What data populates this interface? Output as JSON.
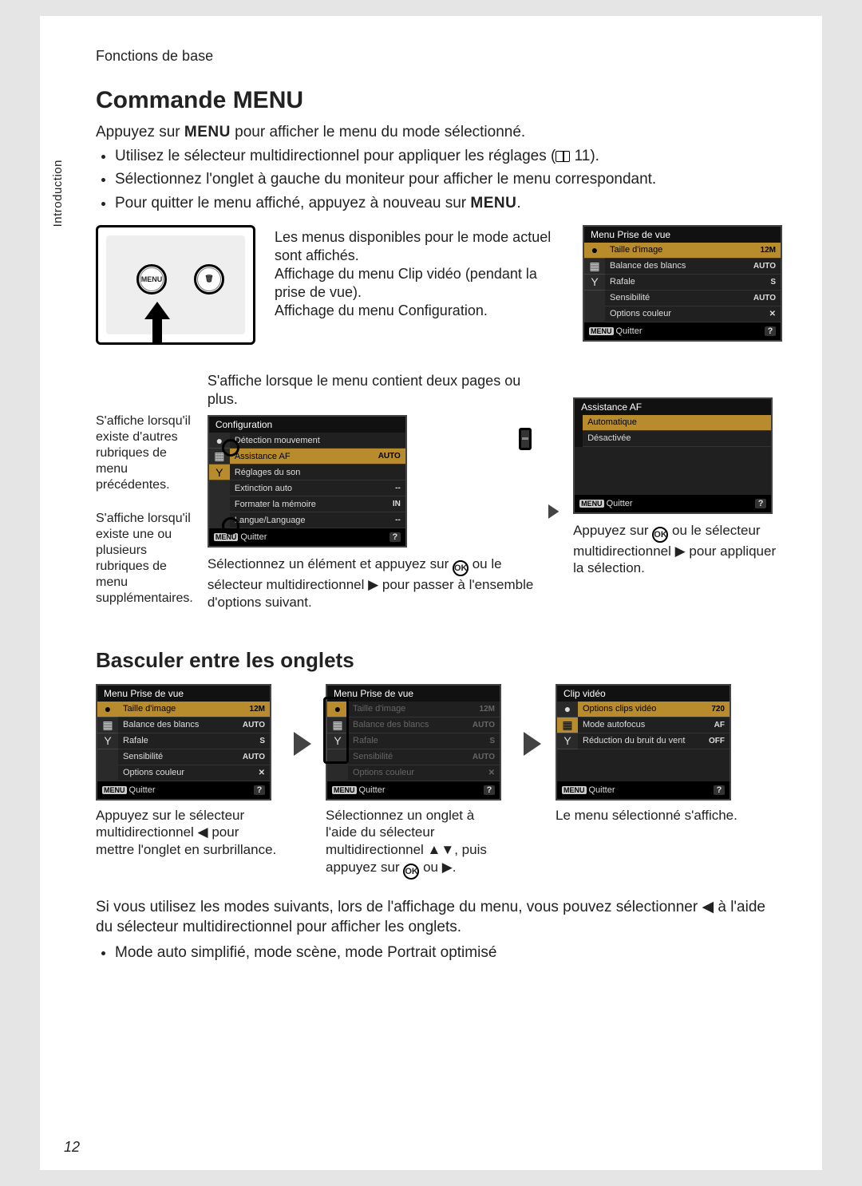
{
  "tab_label": "Introduction",
  "breadcrumb": "Fonctions de base",
  "h1": "Commande MENU",
  "intro_line_pre": "Appuyez sur ",
  "intro_line_bold": "MENU",
  "intro_line_post": " pour afficher le menu du mode sélectionné.",
  "bullets": [
    "Utilisez le sélecteur multidirectionnel pour appliquer les réglages (📖 11).",
    "Sélectionnez l'onglet à gauche du moniteur pour afficher le menu correspondant.",
    "Pour quitter le menu affiché, appuyez à nouveau sur MENU."
  ],
  "sec1_text": "Les menus disponibles pour le mode actuel sont affichés.\nAffichage du menu Clip vidéo (pendant la prise de vue).\nAffichage du menu Configuration.",
  "lcd1": {
    "title": "Menu Prise de vue",
    "rows": [
      {
        "label": "Taille d'image",
        "val": "12M",
        "sel": true
      },
      {
        "label": "Balance des blancs",
        "val": "AUTO"
      },
      {
        "label": "Rafale",
        "val": "S"
      },
      {
        "label": "Sensibilité",
        "val": "AUTO"
      },
      {
        "label": "Options couleur",
        "val": "✕"
      }
    ],
    "foot": "Quitter"
  },
  "sec2": {
    "toptext": "S'affiche lorsque le menu contient deux pages ou plus.",
    "left_a": "S'affiche lorsqu'il existe d'autres rubriques de menu précédentes.",
    "left_b": "S'affiche lorsqu'il existe une ou plusieurs rubriques de menu supplémentaires.",
    "cap_b_pre": "Sélectionnez un élément et appuyez sur ",
    "cap_b_post": " ou le sélecteur multidirectionnel ▶ pour passer à l'ensemble d'options suivant.",
    "cap_c_pre": "Appuyez sur ",
    "cap_c_post": " ou le sélecteur multidirectionnel ▶ pour appliquer la sélection."
  },
  "lcd2": {
    "title": "Configuration",
    "rows": [
      {
        "label": "Détection mouvement",
        "val": ""
      },
      {
        "label": "Assistance AF",
        "val": "AUTO",
        "sel": true
      },
      {
        "label": "Réglages du son",
        "val": ""
      },
      {
        "label": "Extinction auto",
        "val": "--"
      },
      {
        "label": "Formater la mémoire",
        "val": "IN"
      },
      {
        "label": "Langue/Language",
        "val": "--"
      }
    ],
    "foot": "Quitter"
  },
  "lcd3": {
    "title": "Assistance AF",
    "rows": [
      {
        "label": "Automatique",
        "val": "",
        "sel": true
      },
      {
        "label": "Désactivée",
        "val": ""
      }
    ],
    "foot": "Quitter"
  },
  "h2": "Basculer entre les onglets",
  "sec3": {
    "cap_a": "Appuyez sur le sélecteur multidirectionnel ◀ pour mettre l'onglet en surbrillance.",
    "cap_b_pre": "Sélectionnez un onglet à l'aide du sélecteur multidirectionnel ▲▼, puis appuyez sur ",
    "cap_b_post": " ou ▶.",
    "cap_c": "Le menu sélectionné s'affiche."
  },
  "lcd4": {
    "title": "Menu Prise de vue",
    "rows": [
      {
        "label": "Taille d'image",
        "val": "12M",
        "sel": true
      },
      {
        "label": "Balance des blancs",
        "val": "AUTO"
      },
      {
        "label": "Rafale",
        "val": "S"
      },
      {
        "label": "Sensibilité",
        "val": "AUTO"
      },
      {
        "label": "Options couleur",
        "val": "✕"
      }
    ],
    "foot": "Quitter"
  },
  "lcd5": {
    "title": "Menu Prise de vue",
    "rows": [
      {
        "label": "Taille d'image",
        "val": "12M"
      },
      {
        "label": "Balance des blancs",
        "val": "AUTO"
      },
      {
        "label": "Rafale",
        "val": "S"
      },
      {
        "label": "Sensibilité",
        "val": "AUTO"
      },
      {
        "label": "Options couleur",
        "val": "✕"
      }
    ],
    "foot": "Quitter"
  },
  "lcd6": {
    "title": "Clip vidéo",
    "rows": [
      {
        "label": "Options clips vidéo",
        "val": "720",
        "sel": true
      },
      {
        "label": "Mode autofocus",
        "val": "AF"
      },
      {
        "label": "Réduction du bruit du vent",
        "val": "OFF"
      }
    ],
    "foot": "Quitter"
  },
  "footer_para": "Si vous utilisez les modes suivants, lors de l'affichage du menu, vous pouvez sélectionner ◀ à l'aide du sélecteur multidirectionnel pour afficher les onglets.",
  "footer_bullet": "Mode auto simplifié, mode scène, mode Portrait optimisé",
  "pagenum": "12",
  "tab_icons": [
    "●",
    "▦",
    "Y"
  ]
}
